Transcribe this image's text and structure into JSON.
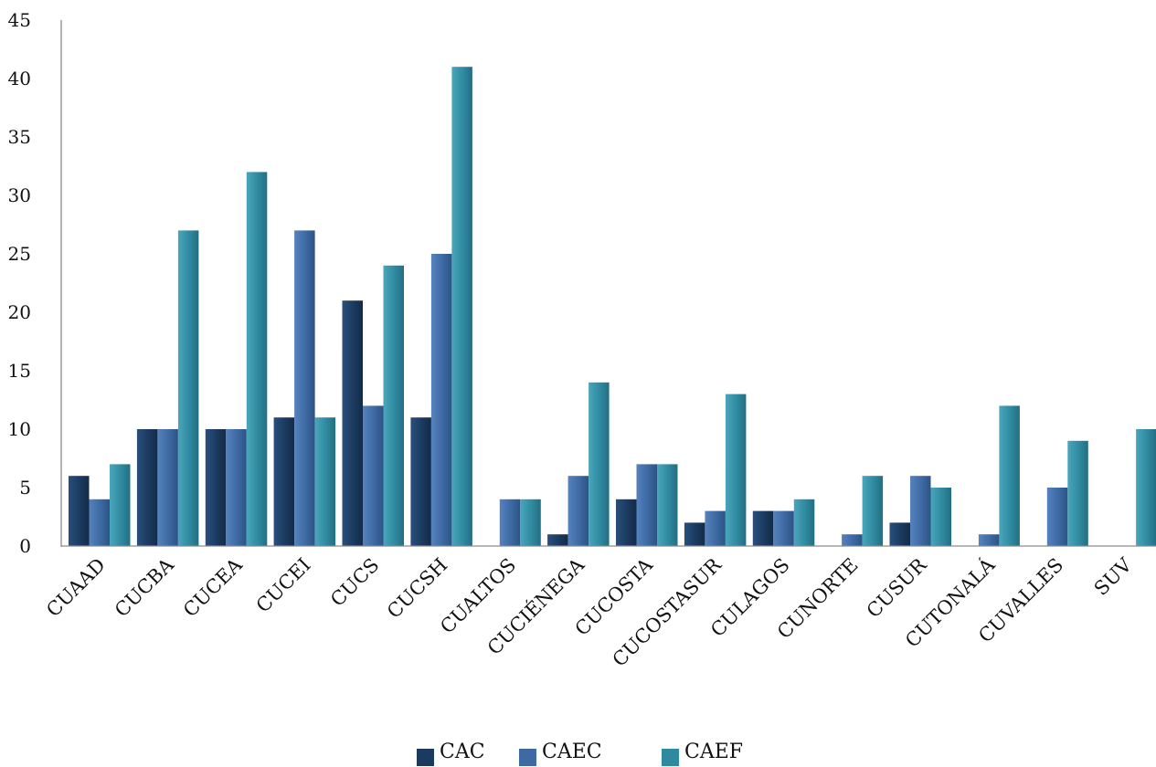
{
  "chart_data": {
    "type": "bar",
    "title": "",
    "xlabel": "",
    "ylabel": "",
    "ylim": [
      0,
      45
    ],
    "yticks": [
      0,
      5,
      10,
      15,
      20,
      25,
      30,
      35,
      40,
      45
    ],
    "grid": false,
    "legend_position": "bottom",
    "categories": [
      "CUAAD",
      "CUCBA",
      "CUCEA",
      "CUCEI",
      "CUCS",
      "CUCSH",
      "CUALTOS",
      "CUCIÉNEGA",
      "CUCOSTA",
      "CUCOSTASUR",
      "CULAGOS",
      "CUNORTE",
      "CUSUR",
      "CUTONALÁ",
      "CUVALLES",
      "SUV"
    ],
    "series": [
      {
        "name": "CAC",
        "color": "#1b3a5f",
        "values": [
          6,
          10,
          10,
          11,
          21,
          11,
          0,
          1,
          4,
          2,
          3,
          0,
          2,
          0,
          0,
          0
        ]
      },
      {
        "name": "CAEC",
        "color": "#3d6aa3",
        "values": [
          4,
          10,
          10,
          27,
          12,
          25,
          4,
          6,
          7,
          3,
          3,
          1,
          6,
          1,
          5,
          0
        ]
      },
      {
        "name": "CAEF",
        "color": "#2f8aa0",
        "values": [
          7,
          27,
          32,
          11,
          24,
          41,
          4,
          14,
          7,
          13,
          4,
          6,
          5,
          12,
          9,
          10
        ]
      }
    ]
  }
}
